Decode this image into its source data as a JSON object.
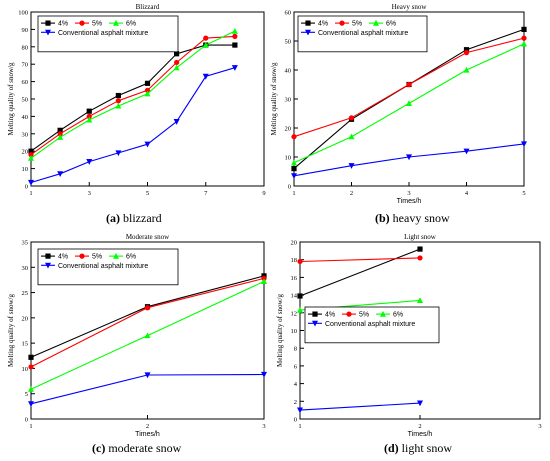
{
  "chart_data": [
    {
      "type": "line",
      "title": "Blizzard",
      "xlabel": "",
      "ylabel": "Melting quality of snow/g",
      "xlim": [
        1,
        9
      ],
      "ylim": [
        0,
        100
      ],
      "xticks": [
        1,
        3,
        5,
        7,
        9
      ],
      "yticks": [
        0,
        10,
        20,
        30,
        40,
        50,
        60,
        70,
        80,
        90,
        100
      ],
      "grid": false,
      "legend": "top-left",
      "series": [
        {
          "name": "4%",
          "color": "#000000",
          "marker": "square",
          "x": [
            1,
            2,
            3,
            4,
            5,
            6,
            7,
            8
          ],
          "y": [
            20,
            32,
            43,
            52,
            59,
            76,
            81,
            81
          ]
        },
        {
          "name": "5%",
          "color": "#ff0000",
          "marker": "circle",
          "x": [
            1,
            2,
            3,
            4,
            5,
            6,
            7,
            8
          ],
          "y": [
            18,
            30,
            40,
            49,
            55,
            71,
            85,
            86
          ]
        },
        {
          "name": "6%",
          "color": "#00ff00",
          "marker": "triangle-up",
          "x": [
            1,
            2,
            3,
            4,
            5,
            6,
            7,
            8
          ],
          "y": [
            16,
            28,
            38,
            46,
            53,
            68,
            81,
            89
          ]
        },
        {
          "name": "Conventional asphalt mixture",
          "color": "#0000ff",
          "marker": "triangle-down",
          "x": [
            1,
            2,
            3,
            4,
            5,
            6,
            7,
            8
          ],
          "y": [
            2,
            7,
            14,
            19,
            24,
            37,
            63,
            68
          ]
        }
      ]
    },
    {
      "type": "line",
      "title": "Heavy snow",
      "xlabel": "Times/h",
      "ylabel": "Melting quality of snow/g",
      "xlim": [
        1,
        5
      ],
      "ylim": [
        0,
        60
      ],
      "xticks": [
        1,
        2,
        3,
        4,
        5
      ],
      "yticks": [
        0,
        10,
        20,
        30,
        40,
        50,
        60
      ],
      "grid": false,
      "legend": "top-left",
      "series": [
        {
          "name": "4%",
          "color": "#000000",
          "marker": "square",
          "x": [
            1,
            2,
            3,
            4,
            5
          ],
          "y": [
            6,
            23,
            35,
            47,
            54
          ]
        },
        {
          "name": "5%",
          "color": "#ff0000",
          "marker": "circle",
          "x": [
            1,
            2,
            3,
            4,
            5
          ],
          "y": [
            17,
            23.5,
            35,
            46,
            51
          ]
        },
        {
          "name": "6%",
          "color": "#00ff00",
          "marker": "triangle-up",
          "x": [
            1,
            2,
            3,
            4,
            5
          ],
          "y": [
            8,
            17,
            28.5,
            40,
            49
          ]
        },
        {
          "name": "Conventional asphalt mixture",
          "color": "#0000ff",
          "marker": "triangle-down",
          "x": [
            1,
            2,
            3,
            4,
            5
          ],
          "y": [
            3.5,
            7,
            10,
            12,
            14.5
          ]
        }
      ]
    },
    {
      "type": "line",
      "title": "Moderate snow",
      "xlabel": "Times/h",
      "ylabel": "Melting quality of snow/g",
      "xlim": [
        1,
        3
      ],
      "ylim": [
        0,
        35
      ],
      "xticks": [
        1,
        2,
        3
      ],
      "yticks": [
        0,
        5,
        10,
        15,
        20,
        25,
        30,
        35
      ],
      "grid": false,
      "legend": "top-left",
      "series": [
        {
          "name": "4%",
          "color": "#000000",
          "marker": "square",
          "x": [
            1,
            2,
            3
          ],
          "y": [
            12.2,
            22.2,
            28.3
          ]
        },
        {
          "name": "5%",
          "color": "#ff0000",
          "marker": "circle",
          "x": [
            1,
            2,
            3
          ],
          "y": [
            10.3,
            22,
            27.8
          ]
        },
        {
          "name": "6%",
          "color": "#00ff00",
          "marker": "triangle-up",
          "x": [
            1,
            2,
            3
          ],
          "y": [
            5.9,
            16.5,
            27.2
          ]
        },
        {
          "name": "Conventional asphalt mixture",
          "color": "#0000ff",
          "marker": "triangle-down",
          "x": [
            1,
            2,
            3
          ],
          "y": [
            3,
            8.7,
            8.8
          ]
        }
      ]
    },
    {
      "type": "line",
      "title": "Light snow",
      "xlabel": "Times/h",
      "ylabel": "Melting quality of snow/g",
      "xlim": [
        1,
        3
      ],
      "ylim": [
        0,
        20
      ],
      "xticks": [
        1,
        2,
        3
      ],
      "yticks": [
        0,
        2,
        4,
        6,
        8,
        10,
        12,
        14,
        16,
        18,
        20
      ],
      "grid": false,
      "legend": "center-left",
      "series": [
        {
          "name": "4%",
          "color": "#000000",
          "marker": "square",
          "x": [
            1,
            2
          ],
          "y": [
            13.9,
            19.2
          ]
        },
        {
          "name": "5%",
          "color": "#ff0000",
          "marker": "circle",
          "x": [
            1,
            2
          ],
          "y": [
            17.8,
            18.2
          ]
        },
        {
          "name": "6%",
          "color": "#00ff00",
          "marker": "triangle-up",
          "x": [
            1,
            2
          ],
          "y": [
            12.3,
            13.4
          ]
        },
        {
          "name": "Conventional asphalt mixture",
          "color": "#0000ff",
          "marker": "triangle-down",
          "x": [
            1,
            2
          ],
          "y": [
            1,
            1.8
          ]
        }
      ]
    }
  ],
  "captions": [
    {
      "letter": "(a)",
      "text": " blizzard"
    },
    {
      "letter": "(b)",
      "text": " heavy snow"
    },
    {
      "letter": "(c)",
      "text": " moderate snow"
    },
    {
      "letter": "(d)",
      "text": " light snow"
    }
  ]
}
